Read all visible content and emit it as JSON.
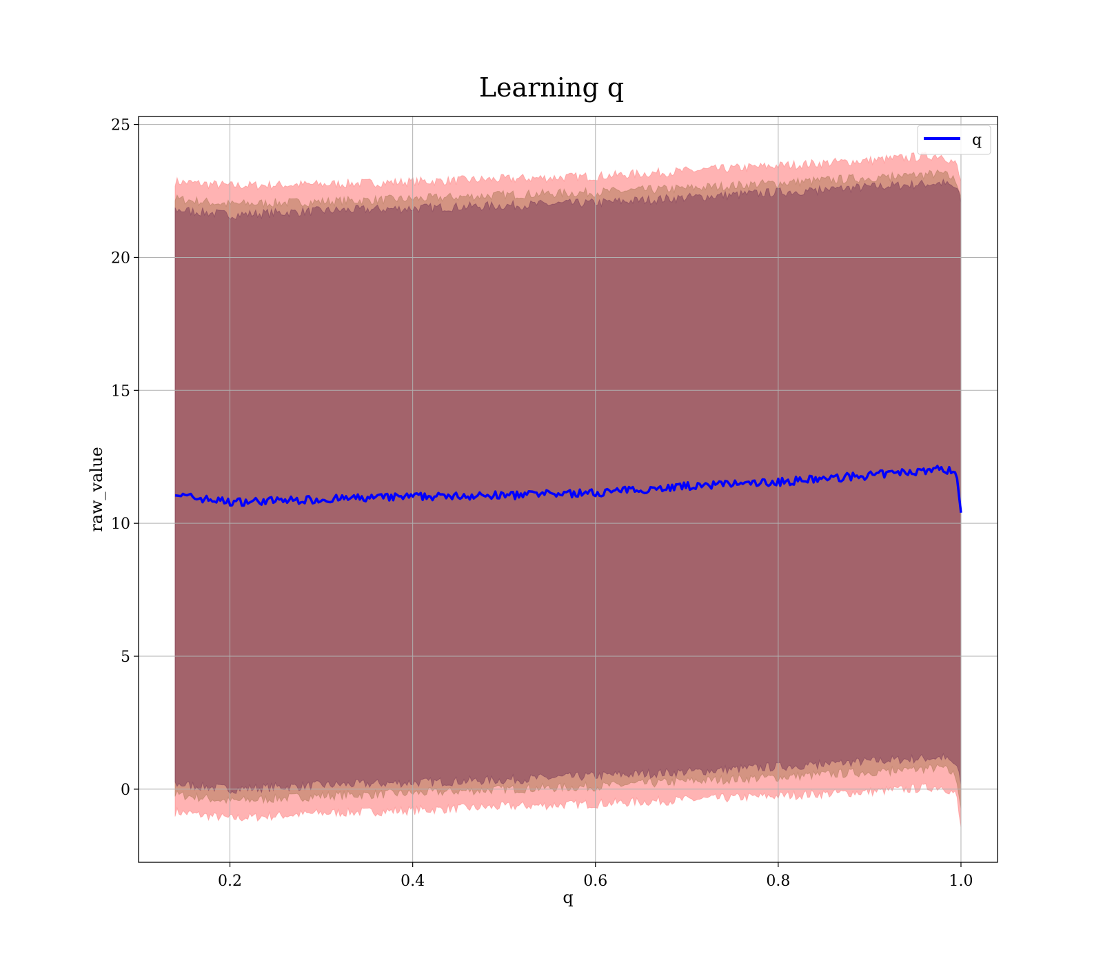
{
  "chart_data": {
    "type": "line",
    "title": "Learning q",
    "xlabel": "q",
    "ylabel": "raw_value",
    "xlim": [
      0.1,
      1.04
    ],
    "ylim": [
      -2.75,
      25.3
    ],
    "xticks": [
      0.2,
      0.4,
      0.6,
      0.8,
      1.0
    ],
    "xtick_labels": [
      "0.2",
      "0.4",
      "0.6",
      "0.8",
      "1.0"
    ],
    "yticks": [
      0,
      5,
      10,
      15,
      20,
      25
    ],
    "ytick_labels": [
      "0",
      "5",
      "10",
      "15",
      "20",
      "25"
    ],
    "grid": true,
    "legend": {
      "position": "top-right",
      "entries": [
        {
          "label": "q",
          "color": "#0000ff"
        }
      ]
    },
    "x": [
      0.14,
      0.2,
      0.3,
      0.4,
      0.5,
      0.6,
      0.7,
      0.8,
      0.9,
      0.98,
      0.995,
      1.0
    ],
    "series": [
      {
        "name": "q",
        "color": "#0000ff",
        "values": [
          11.05,
          10.8,
          10.9,
          11.0,
          11.05,
          11.15,
          11.4,
          11.55,
          11.8,
          12.05,
          11.9,
          10.4
        ]
      }
    ],
    "bands": [
      {
        "color": "#ff8080",
        "opacity": 0.6,
        "lower": [
          -0.85,
          -1.1,
          -0.9,
          -0.8,
          -0.65,
          -0.55,
          -0.4,
          -0.25,
          -0.1,
          0.1,
          -0.2,
          -1.5
        ],
        "upper": [
          22.85,
          22.7,
          22.75,
          22.85,
          22.95,
          23.05,
          23.25,
          23.45,
          23.65,
          23.85,
          23.5,
          22.8
        ]
      },
      {
        "color": "#b07a5a",
        "opacity": 0.55,
        "lower": [
          -0.2,
          -0.45,
          -0.25,
          -0.15,
          0.0,
          0.1,
          0.3,
          0.45,
          0.65,
          0.8,
          0.5,
          -0.7
        ],
        "upper": [
          22.2,
          22.0,
          22.1,
          22.2,
          22.35,
          22.45,
          22.6,
          22.8,
          23.0,
          23.15,
          22.9,
          22.3
        ]
      },
      {
        "color": "#7a3a5a",
        "opacity": 0.55,
        "lower": [
          0.2,
          0.0,
          0.15,
          0.25,
          0.35,
          0.5,
          0.65,
          0.85,
          1.05,
          1.2,
          0.9,
          0.2
        ],
        "upper": [
          21.8,
          21.6,
          21.75,
          21.85,
          21.95,
          22.05,
          22.25,
          22.45,
          22.65,
          22.8,
          22.6,
          22.1
        ]
      }
    ]
  }
}
